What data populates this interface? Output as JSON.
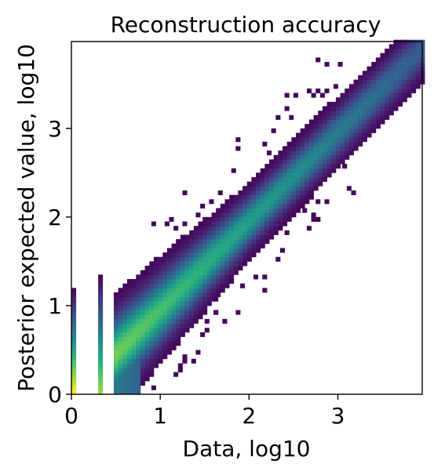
{
  "chart_data": {
    "type": "heatmap",
    "title": "Reconstruction accuracy",
    "xlabel": "Data, log10",
    "ylabel": "Posterior expected value, log10",
    "xlim": [
      0,
      3.95
    ],
    "ylim": [
      0,
      3.98
    ],
    "x_ticks": [
      0,
      1,
      2,
      3
    ],
    "x_tick_labels": [
      "0",
      "1",
      "2",
      "3"
    ],
    "y_ticks": [
      0,
      1,
      2,
      3
    ],
    "y_tick_labels": [
      "0",
      "1",
      "2",
      "3"
    ],
    "colormap": "viridis",
    "grid": false,
    "bin_size": 0.05,
    "density_model": {
      "trend": "y ≈ x",
      "discrete_data_columns_x": [
        0,
        0.301
      ],
      "continuous_data_start_x": 0.477,
      "column_0_y_max": 1.18,
      "column_0301_y_max": 1.32
    }
  }
}
